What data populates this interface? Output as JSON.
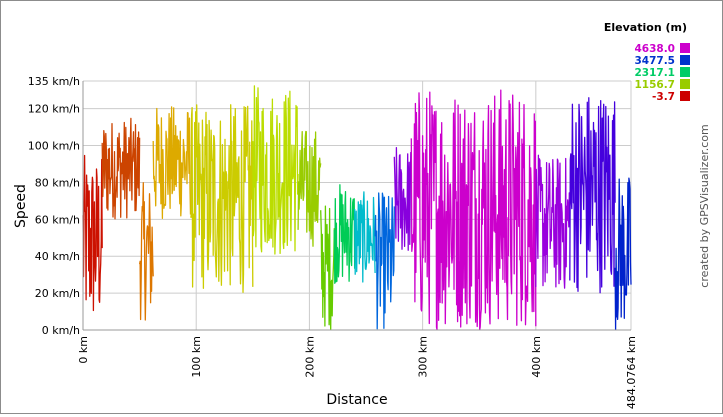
{
  "chart_data": {
    "type": "line",
    "xlabel": "Distance",
    "ylabel": "Speed",
    "x_unit": "km",
    "y_unit": "km/h",
    "xlim": [
      0,
      484.0764
    ],
    "ylim": [
      0,
      135
    ],
    "x_ticks": [
      "0 km",
      "100 km",
      "200 km",
      "300 km",
      "400 km",
      "484.0764 km"
    ],
    "y_ticks": [
      "0 km/h",
      "20 km/h",
      "40 km/h",
      "60 km/h",
      "80 km/h",
      "100 km/h",
      "120 km/h",
      "135 km/h"
    ],
    "y_tick_values": [
      0,
      20,
      40,
      60,
      80,
      100,
      120,
      135
    ],
    "x_tick_values": [
      0,
      100,
      200,
      300,
      400,
      484.0764
    ],
    "grid": true,
    "legend": {
      "title": "Elevation (m)",
      "placement": "top-right",
      "entries": [
        {
          "label": "4638.0",
          "color": "#cc00cc"
        },
        {
          "label": "3477.5",
          "color": "#0033cc"
        },
        {
          "label": "2317.1",
          "color": "#00cc66"
        },
        {
          "label": "1156.7",
          "color": "#99cc00"
        },
        {
          "label": "-3.7",
          "color": "#cc0000"
        }
      ]
    },
    "credit": "created by GPSVisualizer.com",
    "series": [
      {
        "color_by": "elevation",
        "segments": [
          {
            "x0": 0,
            "x1": 17,
            "min": 0,
            "max": 95,
            "color": "#cc1100"
          },
          {
            "x0": 17,
            "x1": 50,
            "min": 60,
            "max": 115,
            "color": "#cc4400"
          },
          {
            "x0": 50,
            "x1": 62,
            "min": 5,
            "max": 80,
            "color": "#dd7700"
          },
          {
            "x0": 62,
            "x1": 95,
            "min": 60,
            "max": 122,
            "color": "#ddaa00"
          },
          {
            "x0": 95,
            "x1": 150,
            "min": 20,
            "max": 123,
            "color": "#cccc00"
          },
          {
            "x0": 150,
            "x1": 190,
            "min": 40,
            "max": 133,
            "color": "#bbdd00"
          },
          {
            "x0": 190,
            "x1": 210,
            "min": 45,
            "max": 110,
            "color": "#99cc00"
          },
          {
            "x0": 210,
            "x1": 222,
            "min": 0,
            "max": 70,
            "color": "#66cc00"
          },
          {
            "x0": 222,
            "x1": 240,
            "min": 25,
            "max": 80,
            "color": "#00cc55"
          },
          {
            "x0": 240,
            "x1": 258,
            "min": 25,
            "max": 75,
            "color": "#00bbcc"
          },
          {
            "x0": 258,
            "x1": 275,
            "min": 0,
            "max": 75,
            "color": "#0066dd"
          },
          {
            "x0": 275,
            "x1": 290,
            "min": 40,
            "max": 100,
            "color": "#8800dd"
          },
          {
            "x0": 290,
            "x1": 400,
            "min": 0,
            "max": 133,
            "color": "#cc00cc"
          },
          {
            "x0": 400,
            "x1": 430,
            "min": 20,
            "max": 95,
            "color": "#9900dd"
          },
          {
            "x0": 430,
            "x1": 470,
            "min": 20,
            "max": 132,
            "color": "#4400dd"
          },
          {
            "x0": 470,
            "x1": 484.0764,
            "min": 0,
            "max": 85,
            "color": "#0022cc"
          }
        ]
      }
    ]
  }
}
